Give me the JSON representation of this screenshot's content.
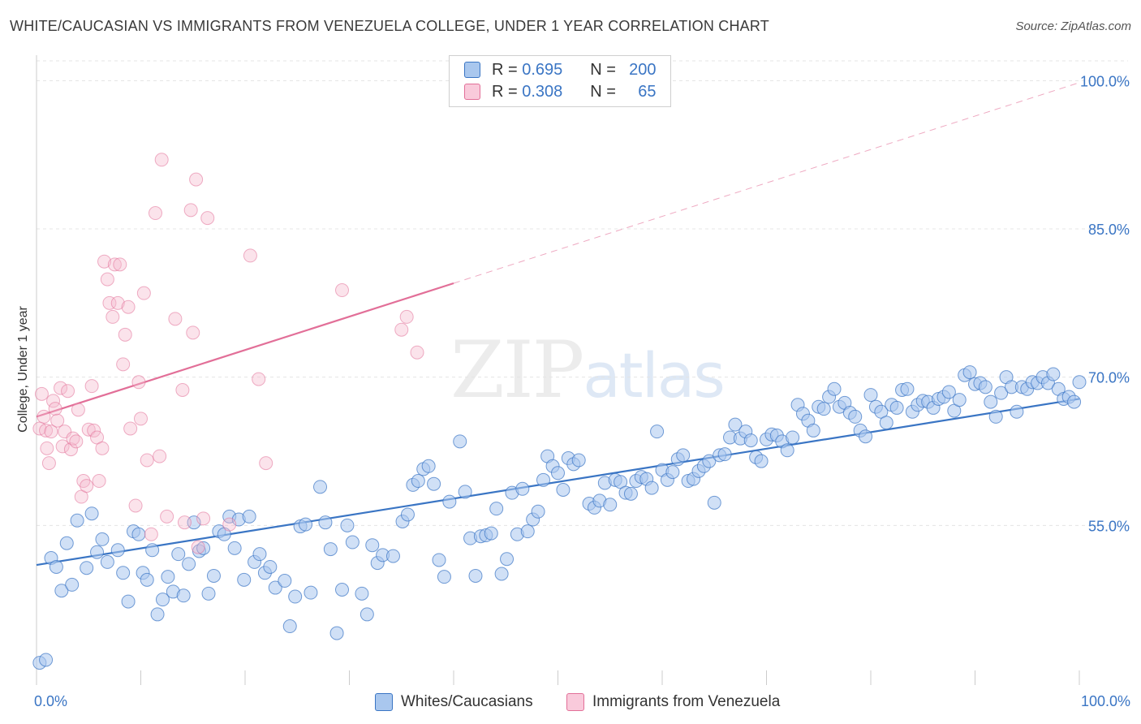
{
  "title": "WHITE/CAUCASIAN VS IMMIGRANTS FROM VENEZUELA COLLEGE, UNDER 1 YEAR CORRELATION CHART",
  "source": "Source: ZipAtlas.com",
  "watermark": {
    "zip": "ZIP",
    "atlas": "atlas"
  },
  "legend": {
    "r_label": "R =",
    "n_label": "N =",
    "series": [
      {
        "r": "0.695",
        "n": "200"
      },
      {
        "r": "0.308",
        "n": "65"
      }
    ]
  },
  "bottom_legend": [
    "Whites/Caucasians",
    "Immigrants from Venezuela"
  ],
  "chart_data": {
    "type": "scatter",
    "title": "WHITE/CAUCASIAN VS IMMIGRANTS FROM VENEZUELA COLLEGE, UNDER 1 YEAR CORRELATION CHART",
    "xlabel": "",
    "ylabel": "College, Under 1 year",
    "xlim": [
      0,
      100
    ],
    "ylim": [
      40,
      102
    ],
    "x_tick_labels": [
      "0.0%",
      "100.0%"
    ],
    "y_ticks": [
      55,
      70,
      85,
      100
    ],
    "y_tick_labels": [
      "55.0%",
      "70.0%",
      "85.0%",
      "100.0%"
    ],
    "grid": true,
    "colors": {
      "blue": "#3a75c4",
      "blue_fill": "#a9c7ee",
      "pink": "#e26f98",
      "pink_fill": "#f4b8cc"
    },
    "series": [
      {
        "name": "Whites/Caucasians",
        "trend": {
          "x0": 0,
          "y0": 51.0,
          "x1": 100,
          "y1": 67.8
        },
        "points": [
          [
            0.3,
            41.1
          ],
          [
            0.9,
            41.4
          ],
          [
            1.4,
            51.7
          ],
          [
            1.9,
            50.8
          ],
          [
            2.4,
            48.4
          ],
          [
            2.9,
            53.2
          ],
          [
            3.4,
            49.0
          ],
          [
            3.9,
            55.5
          ],
          [
            4.8,
            50.7
          ],
          [
            5.3,
            56.2
          ],
          [
            5.8,
            52.3
          ],
          [
            6.3,
            53.6
          ],
          [
            6.8,
            51.3
          ],
          [
            7.8,
            52.5
          ],
          [
            8.3,
            50.2
          ],
          [
            8.8,
            47.3
          ],
          [
            9.3,
            54.4
          ],
          [
            9.8,
            54.1
          ],
          [
            10.2,
            50.2
          ],
          [
            10.6,
            49.5
          ],
          [
            11.1,
            52.5
          ],
          [
            11.6,
            46.0
          ],
          [
            12.1,
            47.5
          ],
          [
            12.6,
            49.8
          ],
          [
            13.1,
            48.3
          ],
          [
            13.6,
            52.1
          ],
          [
            14.1,
            47.9
          ],
          [
            14.6,
            51.1
          ],
          [
            15.1,
            55.3
          ],
          [
            15.6,
            52.4
          ],
          [
            16.0,
            52.7
          ],
          [
            16.5,
            48.1
          ],
          [
            17.0,
            49.9
          ],
          [
            17.5,
            54.4
          ],
          [
            18.0,
            54.1
          ],
          [
            18.5,
            55.9
          ],
          [
            19.0,
            52.7
          ],
          [
            19.4,
            55.6
          ],
          [
            19.9,
            49.5
          ],
          [
            20.4,
            55.9
          ],
          [
            20.9,
            51.3
          ],
          [
            21.4,
            52.1
          ],
          [
            21.9,
            50.2
          ],
          [
            22.4,
            50.8
          ],
          [
            22.9,
            48.7
          ],
          [
            23.8,
            49.4
          ],
          [
            24.3,
            44.8
          ],
          [
            24.8,
            47.8
          ],
          [
            25.3,
            54.9
          ],
          [
            25.8,
            55.1
          ],
          [
            26.3,
            48.2
          ],
          [
            27.2,
            58.9
          ],
          [
            27.7,
            55.3
          ],
          [
            28.2,
            52.6
          ],
          [
            28.8,
            44.1
          ],
          [
            29.3,
            48.5
          ],
          [
            29.8,
            55.0
          ],
          [
            30.3,
            53.3
          ],
          [
            31.2,
            48.1
          ],
          [
            31.7,
            46.0
          ],
          [
            32.2,
            53.0
          ],
          [
            32.7,
            51.2
          ],
          [
            33.2,
            52.0
          ],
          [
            34.2,
            51.9
          ],
          [
            35.1,
            55.4
          ],
          [
            35.6,
            56.1
          ],
          [
            36.1,
            59.1
          ],
          [
            36.6,
            59.5
          ],
          [
            37.1,
            60.7
          ],
          [
            37.6,
            61.0
          ],
          [
            38.1,
            59.2
          ],
          [
            38.6,
            51.5
          ],
          [
            39.1,
            49.8
          ],
          [
            39.6,
            57.4
          ],
          [
            40.6,
            63.5
          ],
          [
            41.1,
            58.4
          ],
          [
            41.6,
            53.7
          ],
          [
            42.1,
            49.9
          ],
          [
            42.6,
            53.9
          ],
          [
            43.1,
            54.0
          ],
          [
            43.6,
            54.2
          ],
          [
            44.1,
            56.7
          ],
          [
            44.6,
            50.1
          ],
          [
            45.1,
            51.6
          ],
          [
            45.6,
            58.3
          ],
          [
            46.1,
            54.1
          ],
          [
            46.6,
            58.7
          ],
          [
            47.1,
            54.4
          ],
          [
            47.6,
            55.6
          ],
          [
            48.1,
            56.4
          ],
          [
            48.6,
            59.6
          ],
          [
            49.0,
            62.0
          ],
          [
            49.5,
            61.0
          ],
          [
            50.0,
            60.3
          ],
          [
            50.5,
            58.6
          ],
          [
            51.0,
            61.8
          ],
          [
            51.5,
            61.2
          ],
          [
            52.0,
            61.6
          ],
          [
            53.0,
            57.2
          ],
          [
            53.5,
            56.8
          ],
          [
            54.0,
            57.5
          ],
          [
            54.5,
            59.3
          ],
          [
            55.0,
            57.1
          ],
          [
            55.5,
            59.6
          ],
          [
            56.0,
            59.4
          ],
          [
            56.5,
            58.3
          ],
          [
            57.0,
            58.2
          ],
          [
            57.5,
            59.5
          ],
          [
            58.0,
            59.9
          ],
          [
            58.5,
            59.7
          ],
          [
            59.0,
            58.8
          ],
          [
            59.5,
            64.5
          ],
          [
            60.0,
            60.6
          ],
          [
            60.5,
            59.6
          ],
          [
            61.0,
            60.4
          ],
          [
            61.5,
            61.7
          ],
          [
            62.0,
            62.1
          ],
          [
            62.5,
            59.5
          ],
          [
            63.0,
            59.7
          ],
          [
            63.5,
            60.5
          ],
          [
            64.0,
            61.0
          ],
          [
            64.5,
            61.5
          ],
          [
            65.0,
            57.3
          ],
          [
            65.5,
            62.1
          ],
          [
            66.0,
            62.2
          ],
          [
            66.5,
            63.9
          ],
          [
            67.0,
            65.2
          ],
          [
            67.5,
            63.8
          ],
          [
            68.0,
            64.5
          ],
          [
            68.5,
            63.6
          ],
          [
            69.0,
            61.9
          ],
          [
            69.5,
            61.5
          ],
          [
            70.0,
            63.7
          ],
          [
            70.5,
            64.2
          ],
          [
            71.0,
            64.1
          ],
          [
            71.5,
            63.5
          ],
          [
            72.0,
            62.6
          ],
          [
            72.5,
            63.9
          ],
          [
            73.0,
            67.2
          ],
          [
            73.5,
            66.3
          ],
          [
            74.0,
            65.6
          ],
          [
            74.5,
            64.6
          ],
          [
            75.0,
            67.0
          ],
          [
            75.5,
            66.8
          ],
          [
            76.0,
            68.0
          ],
          [
            76.5,
            68.8
          ],
          [
            77.0,
            67.0
          ],
          [
            77.5,
            67.4
          ],
          [
            78.0,
            66.4
          ],
          [
            78.5,
            66.0
          ],
          [
            79.0,
            64.6
          ],
          [
            79.5,
            64.0
          ],
          [
            80.0,
            68.2
          ],
          [
            80.5,
            67.0
          ],
          [
            81.0,
            66.5
          ],
          [
            81.5,
            65.4
          ],
          [
            82.0,
            67.2
          ],
          [
            82.5,
            66.9
          ],
          [
            83.0,
            68.7
          ],
          [
            83.5,
            68.8
          ],
          [
            84.0,
            66.5
          ],
          [
            84.5,
            67.2
          ],
          [
            85.0,
            67.6
          ],
          [
            85.5,
            67.5
          ],
          [
            86.0,
            66.9
          ],
          [
            86.5,
            67.8
          ],
          [
            87.0,
            68.0
          ],
          [
            87.5,
            68.5
          ],
          [
            88.0,
            66.6
          ],
          [
            88.5,
            67.7
          ],
          [
            89.0,
            70.2
          ],
          [
            89.5,
            70.5
          ],
          [
            90.0,
            69.3
          ],
          [
            90.5,
            69.4
          ],
          [
            91.0,
            69.0
          ],
          [
            91.5,
            67.5
          ],
          [
            92.0,
            66.0
          ],
          [
            92.5,
            68.4
          ],
          [
            93.0,
            70.0
          ],
          [
            93.5,
            69.0
          ],
          [
            94.0,
            66.5
          ],
          [
            94.5,
            69.0
          ],
          [
            95.0,
            68.8
          ],
          [
            95.5,
            69.5
          ],
          [
            96.0,
            69.4
          ],
          [
            96.5,
            70.0
          ],
          [
            97.0,
            69.4
          ],
          [
            97.5,
            70.3
          ],
          [
            98.0,
            68.8
          ],
          [
            98.5,
            67.8
          ],
          [
            99.0,
            68.0
          ],
          [
            99.5,
            67.5
          ],
          [
            100.0,
            69.5
          ]
        ]
      },
      {
        "name": "Immigrants from Venezuela",
        "trend": {
          "x0": 0,
          "y0": 66.0,
          "x1": 40,
          "y1": 79.5,
          "x_dash_end": 100,
          "y_dash_end": 99.8
        },
        "points": [
          [
            0.3,
            64.8
          ],
          [
            0.5,
            68.3
          ],
          [
            0.7,
            66.0
          ],
          [
            0.9,
            64.6
          ],
          [
            1.0,
            62.8
          ],
          [
            1.2,
            61.3
          ],
          [
            1.4,
            64.5
          ],
          [
            1.6,
            67.6
          ],
          [
            1.8,
            66.8
          ],
          [
            2.0,
            65.6
          ],
          [
            2.3,
            68.9
          ],
          [
            2.5,
            63.0
          ],
          [
            2.7,
            64.5
          ],
          [
            3.0,
            68.6
          ],
          [
            3.3,
            62.7
          ],
          [
            3.5,
            63.8
          ],
          [
            3.8,
            63.5
          ],
          [
            4.0,
            66.7
          ],
          [
            4.3,
            57.9
          ],
          [
            4.5,
            59.5
          ],
          [
            4.8,
            59.0
          ],
          [
            5.0,
            64.7
          ],
          [
            5.3,
            69.1
          ],
          [
            5.5,
            64.6
          ],
          [
            5.8,
            63.9
          ],
          [
            6.0,
            59.5
          ],
          [
            6.3,
            62.8
          ],
          [
            6.5,
            81.7
          ],
          [
            6.8,
            79.9
          ],
          [
            7.0,
            77.5
          ],
          [
            7.3,
            76.1
          ],
          [
            7.5,
            81.4
          ],
          [
            7.8,
            77.5
          ],
          [
            8.0,
            81.4
          ],
          [
            8.3,
            71.3
          ],
          [
            8.5,
            74.3
          ],
          [
            8.8,
            77.1
          ],
          [
            9.0,
            64.8
          ],
          [
            9.5,
            57.0
          ],
          [
            9.8,
            69.5
          ],
          [
            10.0,
            65.8
          ],
          [
            10.3,
            78.5
          ],
          [
            10.6,
            61.6
          ],
          [
            11.0,
            54.1
          ],
          [
            11.4,
            86.6
          ],
          [
            11.8,
            62.0
          ],
          [
            12.0,
            92.0
          ],
          [
            12.5,
            55.9
          ],
          [
            13.3,
            75.9
          ],
          [
            14.0,
            68.7
          ],
          [
            14.2,
            55.3
          ],
          [
            14.8,
            86.9
          ],
          [
            15.0,
            74.5
          ],
          [
            15.3,
            90.0
          ],
          [
            15.5,
            52.8
          ],
          [
            16.0,
            55.7
          ],
          [
            16.4,
            86.1
          ],
          [
            18.5,
            55.1
          ],
          [
            20.5,
            82.3
          ],
          [
            21.3,
            69.8
          ],
          [
            22.0,
            61.3
          ],
          [
            29.3,
            78.8
          ],
          [
            35.0,
            74.8
          ],
          [
            35.5,
            76.1
          ],
          [
            36.5,
            72.5
          ]
        ]
      }
    ]
  }
}
